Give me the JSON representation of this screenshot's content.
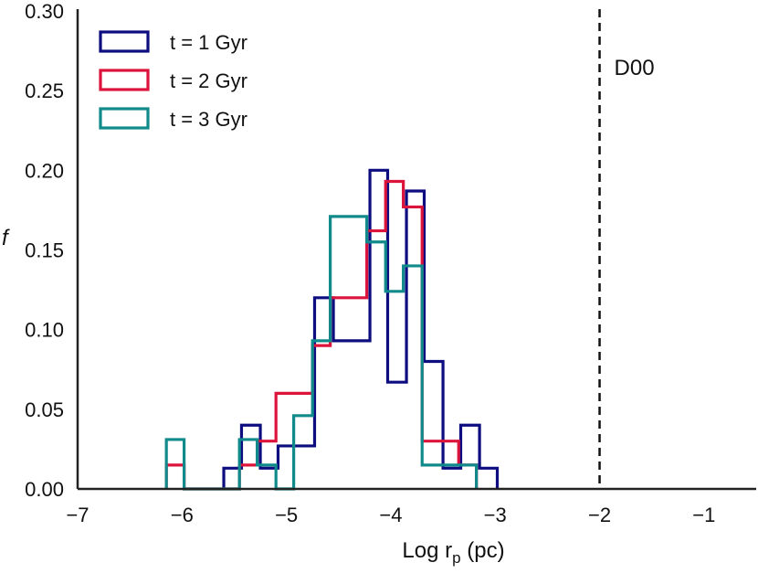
{
  "chart_data": {
    "type": "histogram-step",
    "title": "",
    "xlabel": "Log r",
    "xlabel_subscript": "p",
    "xlabel_suffix": " (pc)",
    "ylabel": "f",
    "xlim": [
      -7,
      -0.5
    ],
    "ylim": [
      0,
      0.3
    ],
    "x_ticks": [
      -7,
      -6,
      -5,
      -4,
      -3,
      -2,
      -1
    ],
    "x_tick_labels": [
      "−7",
      "−6",
      "−5",
      "−4",
      "−3",
      "−2",
      "−1"
    ],
    "y_ticks": [
      0,
      0.05,
      0.1,
      0.15,
      0.2,
      0.25,
      0.3
    ],
    "y_tick_labels": [
      "0.00",
      "0.05",
      "0.10",
      "0.15",
      "0.20",
      "0.25",
      "0.30"
    ],
    "grid": false,
    "legend_position": "top-left",
    "series": [
      {
        "name": "t = 1 Gyr",
        "color": "#0d0d80",
        "edges": [
          -5.6,
          -5.43,
          -5.25,
          -5.08,
          -4.9,
          -4.73,
          -4.55,
          -4.38,
          -4.2,
          -4.03,
          -3.85,
          -3.68,
          -3.5,
          -3.33,
          -3.15,
          -2.98
        ],
        "values": [
          0.013,
          0.04,
          0.013,
          0.027,
          0.027,
          0.12,
          0.093,
          0.093,
          0.2,
          0.067,
          0.187,
          0.08,
          0.013,
          0.04,
          0.013
        ]
      },
      {
        "name": "t = 2 Gyr",
        "color": "#dc143c",
        "edges": [
          -6.15,
          -5.98,
          -5.8,
          -5.63,
          -5.45,
          -5.28,
          -5.1,
          -4.93,
          -4.75,
          -4.58,
          -4.4,
          -4.23,
          -4.05,
          -3.88,
          -3.7,
          -3.53,
          -3.35,
          -3.18
        ],
        "values": [
          0.015,
          0.0,
          0.0,
          0.0,
          0.015,
          0.03,
          0.06,
          0.06,
          0.09,
          0.12,
          0.12,
          0.162,
          0.193,
          0.177,
          0.03,
          0.03,
          0.015
        ]
      },
      {
        "name": "t = 3 Gyr",
        "color": "#108a8a",
        "edges": [
          -6.15,
          -5.98,
          -5.8,
          -5.63,
          -5.45,
          -5.28,
          -5.1,
          -4.93,
          -4.75,
          -4.58,
          -4.4,
          -4.23,
          -4.05,
          -3.88,
          -3.7,
          -3.53,
          -3.35,
          -3.18
        ],
        "values": [
          0.031,
          0.0,
          0.0,
          0.0,
          0.031,
          0.015,
          0.0,
          0.046,
          0.093,
          0.171,
          0.171,
          0.155,
          0.124,
          0.14,
          0.015,
          0.015,
          0.015
        ]
      }
    ],
    "reference_lines": [
      {
        "x": -2,
        "label": "D00",
        "style": "dashed",
        "color": "#111111"
      }
    ]
  }
}
